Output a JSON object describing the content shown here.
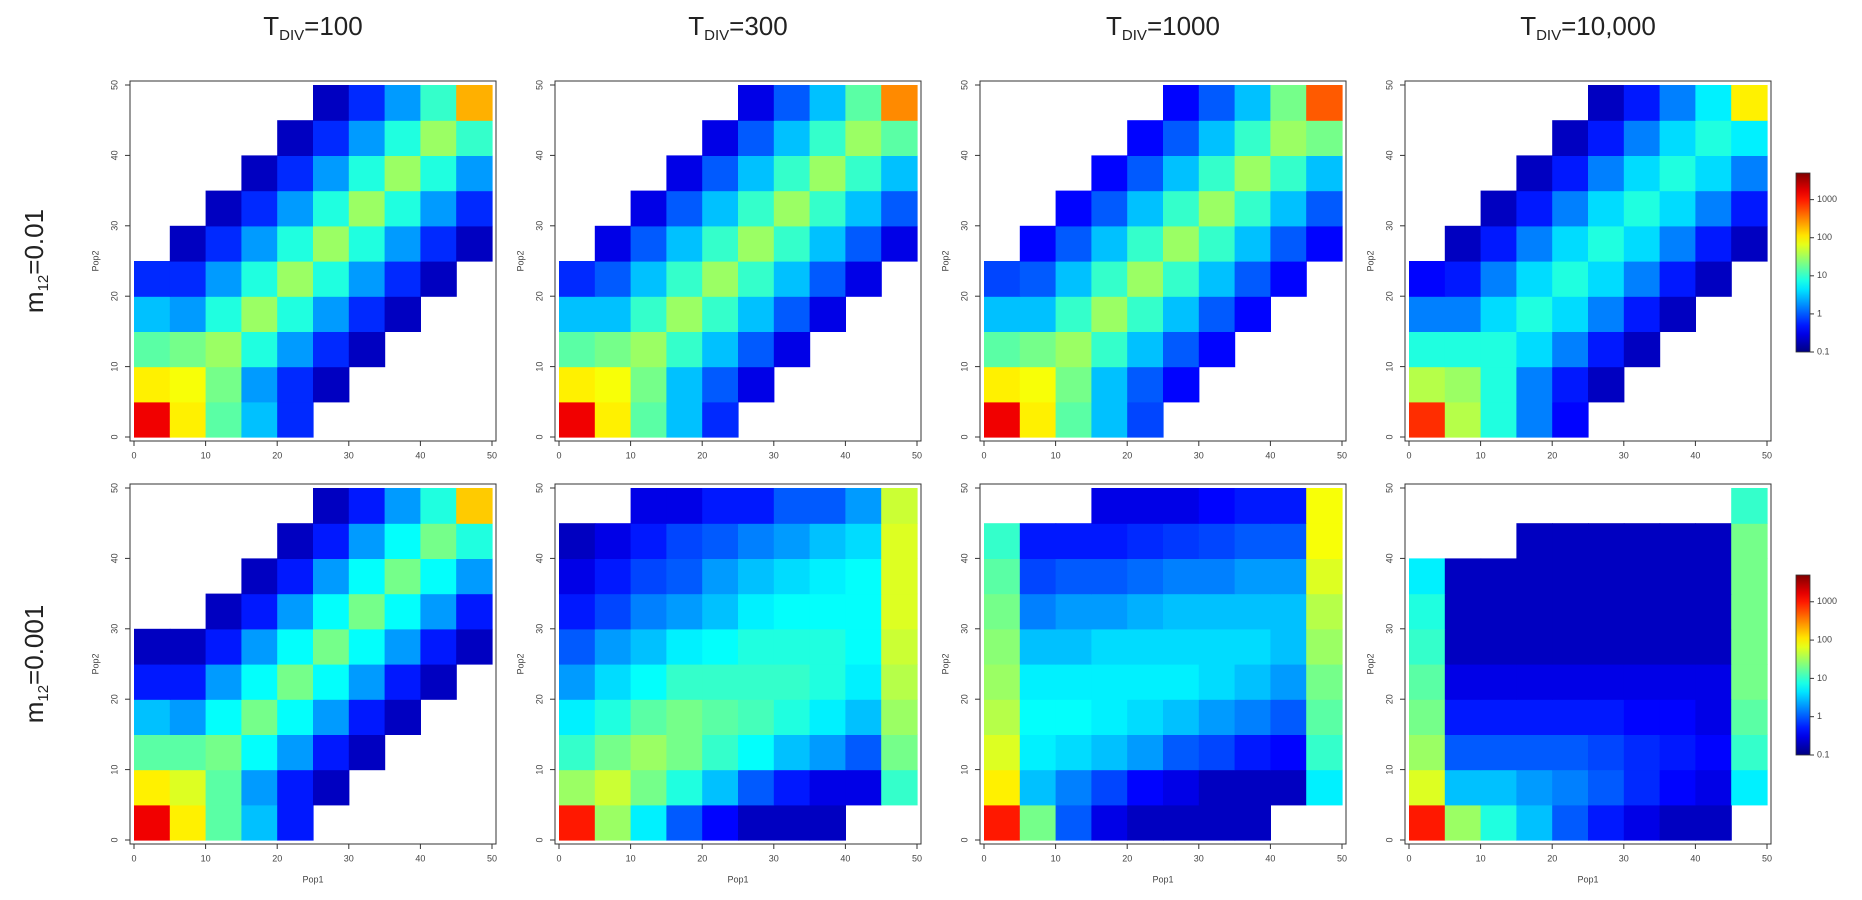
{
  "column_titles": [
    {
      "base": "T",
      "sub": "DIV",
      "text": "=100"
    },
    {
      "base": "T",
      "sub": "DIV",
      "text": "=300"
    },
    {
      "base": "T",
      "sub": "DIV",
      "text": "=1000"
    },
    {
      "base": "T",
      "sub": "DIV",
      "text": "=10,000"
    }
  ],
  "row_labels": [
    {
      "base": "m",
      "sub": "12",
      "text": "=0.01"
    },
    {
      "base": "m",
      "sub": "12",
      "text": "=0.001"
    }
  ],
  "chart_data": [
    {
      "type": "heatmap",
      "xlim": [
        0,
        50
      ],
      "ylim": [
        0,
        50
      ],
      "xticks": [
        0,
        10,
        20,
        30,
        40,
        50
      ],
      "yticks": [
        0,
        10,
        20,
        30,
        40,
        50
      ],
      "ylabel": "Pop2",
      "z": [
        [
          1500,
          100,
          15,
          3,
          0.6,
          null,
          null,
          null,
          null,
          null
        ],
        [
          100,
          80,
          20,
          2,
          0.6,
          0.2,
          null,
          null,
          null,
          null
        ],
        [
          15,
          20,
          30,
          8,
          2,
          0.6,
          0.2,
          null,
          null,
          null
        ],
        [
          3,
          2,
          8,
          30,
          8,
          2,
          0.6,
          0.2,
          null,
          null
        ],
        [
          0.6,
          0.6,
          2,
          8,
          30,
          8,
          2,
          0.6,
          0.2,
          null
        ],
        [
          null,
          0.2,
          0.6,
          2,
          8,
          30,
          8,
          2,
          0.6,
          0.2
        ],
        [
          null,
          null,
          0.2,
          0.6,
          2,
          8,
          30,
          8,
          2,
          0.6
        ],
        [
          null,
          null,
          null,
          0.2,
          0.6,
          2,
          8,
          30,
          8,
          2
        ],
        [
          null,
          null,
          null,
          null,
          0.2,
          0.6,
          2,
          8,
          30,
          10
        ],
        [
          null,
          null,
          null,
          null,
          null,
          0.2,
          0.6,
          2,
          10,
          200
        ]
      ]
    },
    {
      "type": "heatmap",
      "xlim": [
        0,
        50
      ],
      "ylim": [
        0,
        50
      ],
      "xticks": [
        0,
        10,
        20,
        30,
        40,
        50
      ],
      "yticks": [
        0,
        10,
        20,
        30,
        40,
        50
      ],
      "ylabel": "Pop2",
      "z": [
        [
          1500,
          100,
          15,
          3,
          0.6,
          null,
          null,
          null,
          null,
          null
        ],
        [
          100,
          80,
          20,
          3,
          1,
          0.3,
          null,
          null,
          null,
          null
        ],
        [
          15,
          20,
          30,
          10,
          3,
          1,
          0.3,
          null,
          null,
          null
        ],
        [
          3,
          3,
          10,
          30,
          10,
          3,
          1,
          0.3,
          null,
          null
        ],
        [
          0.6,
          1,
          3,
          10,
          30,
          10,
          3,
          1,
          0.3,
          null
        ],
        [
          null,
          0.3,
          1,
          3,
          10,
          30,
          10,
          3,
          1,
          0.3
        ],
        [
          null,
          null,
          0.3,
          1,
          3,
          10,
          30,
          10,
          3,
          1
        ],
        [
          null,
          null,
          null,
          0.3,
          1,
          3,
          10,
          30,
          10,
          3
        ],
        [
          null,
          null,
          null,
          null,
          0.3,
          1,
          3,
          10,
          30,
          15
        ],
        [
          null,
          null,
          null,
          null,
          null,
          0.3,
          1,
          3,
          15,
          300
        ]
      ]
    },
    {
      "type": "heatmap",
      "xlim": [
        0,
        50
      ],
      "ylim": [
        0,
        50
      ],
      "xticks": [
        0,
        10,
        20,
        30,
        40,
        50
      ],
      "yticks": [
        0,
        10,
        20,
        30,
        40,
        50
      ],
      "ylabel": "Pop2",
      "z": [
        [
          1500,
          100,
          15,
          3,
          0.8,
          null,
          null,
          null,
          null,
          null
        ],
        [
          100,
          80,
          20,
          3,
          1,
          0.4,
          null,
          null,
          null,
          null
        ],
        [
          15,
          20,
          30,
          10,
          3,
          1,
          0.4,
          null,
          null,
          null
        ],
        [
          3,
          3,
          10,
          30,
          10,
          3,
          1,
          0.4,
          null,
          null
        ],
        [
          0.8,
          1,
          3,
          10,
          30,
          10,
          3,
          1,
          0.4,
          null
        ],
        [
          null,
          0.4,
          1,
          3,
          10,
          30,
          10,
          3,
          1,
          0.4
        ],
        [
          null,
          null,
          0.4,
          1,
          3,
          10,
          30,
          10,
          3,
          1
        ],
        [
          null,
          null,
          null,
          0.4,
          1,
          3,
          10,
          30,
          10,
          3
        ],
        [
          null,
          null,
          null,
          null,
          0.4,
          1,
          3,
          10,
          30,
          20
        ],
        [
          null,
          null,
          null,
          null,
          null,
          0.4,
          1,
          3,
          20,
          500
        ]
      ]
    },
    {
      "type": "heatmap",
      "xlim": [
        0,
        50
      ],
      "ylim": [
        0,
        50
      ],
      "xticks": [
        0,
        10,
        20,
        30,
        40,
        50
      ],
      "yticks": [
        0,
        10,
        20,
        30,
        40,
        50
      ],
      "ylabel": "Pop2",
      "colorbar": {
        "lim": [
          0.1,
          5000
        ],
        "ticks": [
          0.1,
          1,
          10,
          100,
          1000
        ],
        "log": true,
        "colormap": "jet"
      },
      "z": [
        [
          800,
          40,
          8,
          1.5,
          0.4,
          null,
          null,
          null,
          null,
          null
        ],
        [
          40,
          30,
          8,
          1.5,
          0.5,
          0.2,
          null,
          null,
          null,
          null
        ],
        [
          8,
          8,
          8,
          4,
          1.5,
          0.5,
          0.2,
          null,
          null,
          null
        ],
        [
          1.5,
          1.5,
          4,
          8,
          4,
          1.5,
          0.5,
          0.2,
          null,
          null
        ],
        [
          0.4,
          0.5,
          1.5,
          4,
          8,
          4,
          1.5,
          0.5,
          0.2,
          null
        ],
        [
          null,
          0.2,
          0.5,
          1.5,
          4,
          8,
          4,
          1.5,
          0.5,
          0.2
        ],
        [
          null,
          null,
          0.2,
          0.5,
          1.5,
          4,
          8,
          4,
          1.5,
          0.5
        ],
        [
          null,
          null,
          null,
          0.2,
          0.5,
          1.5,
          4,
          8,
          4,
          1.5
        ],
        [
          null,
          null,
          null,
          null,
          0.2,
          0.5,
          1.5,
          4,
          8,
          5
        ],
        [
          null,
          null,
          null,
          null,
          null,
          0.2,
          0.5,
          1.5,
          5,
          100
        ]
      ]
    },
    {
      "type": "heatmap",
      "xlim": [
        0,
        50
      ],
      "ylim": [
        0,
        50
      ],
      "xticks": [
        0,
        10,
        20,
        30,
        40,
        50
      ],
      "yticks": [
        0,
        10,
        20,
        30,
        40,
        50
      ],
      "xlabel": "Pop1",
      "ylabel": "Pop2",
      "z": [
        [
          1500,
          100,
          15,
          3,
          0.5,
          null,
          null,
          null,
          null,
          null
        ],
        [
          100,
          60,
          15,
          2,
          0.5,
          0.2,
          null,
          null,
          null,
          null
        ],
        [
          15,
          15,
          20,
          6,
          2,
          0.5,
          0.2,
          null,
          null,
          null
        ],
        [
          3,
          2,
          6,
          20,
          6,
          2,
          0.5,
          0.2,
          null,
          null
        ],
        [
          0.5,
          0.5,
          2,
          6,
          20,
          6,
          2,
          0.5,
          0.2,
          null
        ],
        [
          0.2,
          0.2,
          0.5,
          2,
          6,
          20,
          6,
          2,
          0.5,
          0.2
        ],
        [
          null,
          null,
          0.2,
          0.5,
          2,
          6,
          20,
          6,
          2,
          0.5
        ],
        [
          null,
          null,
          null,
          0.2,
          0.5,
          2,
          6,
          20,
          6,
          2
        ],
        [
          null,
          null,
          null,
          null,
          0.2,
          0.5,
          2,
          6,
          20,
          8
        ],
        [
          null,
          null,
          null,
          null,
          null,
          0.2,
          0.5,
          2,
          8,
          150
        ]
      ]
    },
    {
      "type": "heatmap",
      "xlim": [
        0,
        50
      ],
      "ylim": [
        0,
        50
      ],
      "xticks": [
        0,
        10,
        20,
        30,
        40,
        50
      ],
      "yticks": [
        0,
        10,
        20,
        30,
        40,
        50
      ],
      "xlabel": "Pop1",
      "ylabel": "Pop2",
      "z": [
        [
          1000,
          30,
          5,
          1,
          0.4,
          0.2,
          0.2,
          0.2,
          null,
          null
        ],
        [
          30,
          50,
          20,
          8,
          3,
          1,
          0.5,
          0.3,
          0.3,
          10
        ],
        [
          10,
          20,
          30,
          20,
          10,
          6,
          3,
          2,
          1,
          20
        ],
        [
          5,
          8,
          15,
          20,
          15,
          12,
          8,
          5,
          3,
          30
        ],
        [
          2,
          4,
          6,
          10,
          10,
          10,
          10,
          8,
          5,
          40
        ],
        [
          1,
          2,
          3,
          5,
          6,
          8,
          8,
          8,
          6,
          50
        ],
        [
          0.5,
          0.8,
          1.5,
          2,
          3,
          5,
          6,
          6,
          6,
          60
        ],
        [
          0.3,
          0.5,
          0.8,
          1,
          2,
          3,
          4,
          5,
          6,
          60
        ],
        [
          0.2,
          0.3,
          0.5,
          0.8,
          1,
          1.5,
          2,
          3,
          4,
          60
        ],
        [
          null,
          null,
          0.3,
          0.3,
          0.5,
          0.5,
          1,
          1,
          2,
          50
        ]
      ]
    },
    {
      "type": "heatmap",
      "xlim": [
        0,
        50
      ],
      "ylim": [
        0,
        50
      ],
      "xticks": [
        0,
        10,
        20,
        30,
        40,
        50
      ],
      "yticks": [
        0,
        10,
        20,
        30,
        40,
        50
      ],
      "xlabel": "Pop1",
      "ylabel": "Pop2",
      "z": [
        [
          1000,
          20,
          1,
          0.3,
          0.2,
          0.2,
          0.2,
          0.2,
          null,
          null
        ],
        [
          100,
          3,
          1.5,
          0.8,
          0.4,
          0.3,
          0.2,
          0.2,
          0.2,
          5
        ],
        [
          60,
          5,
          4,
          3,
          2,
          1,
          0.8,
          0.5,
          0.4,
          10
        ],
        [
          40,
          6,
          6,
          5,
          4,
          3,
          2,
          1.5,
          1,
          15
        ],
        [
          30,
          5,
          5,
          5,
          5,
          5,
          4,
          3,
          2,
          20
        ],
        [
          25,
          3,
          3,
          4,
          4,
          4,
          4,
          4,
          3,
          30
        ],
        [
          20,
          1.5,
          2,
          2,
          2.5,
          3,
          3,
          3,
          3,
          40
        ],
        [
          15,
          0.8,
          1,
          1,
          1.2,
          1.5,
          1.5,
          2,
          2,
          60
        ],
        [
          10,
          0.5,
          0.5,
          0.5,
          0.6,
          0.7,
          0.8,
          1,
          1,
          80
        ],
        [
          null,
          null,
          null,
          0.3,
          0.3,
          0.3,
          0.4,
          0.5,
          0.5,
          80
        ]
      ]
    },
    {
      "type": "heatmap",
      "xlim": [
        0,
        50
      ],
      "ylim": [
        0,
        50
      ],
      "xticks": [
        0,
        10,
        20,
        30,
        40,
        50
      ],
      "yticks": [
        0,
        10,
        20,
        30,
        40,
        50
      ],
      "xlabel": "Pop1",
      "ylabel": "Pop2",
      "colorbar": {
        "lim": [
          0.1,
          5000
        ],
        "ticks": [
          0.1,
          1,
          10,
          100,
          1000
        ],
        "log": true,
        "colormap": "jet"
      },
      "z": [
        [
          1000,
          30,
          8,
          3,
          1,
          0.5,
          0.3,
          0.2,
          0.2,
          null
        ],
        [
          60,
          3,
          3,
          2,
          1.5,
          1,
          0.6,
          0.4,
          0.3,
          5
        ],
        [
          30,
          1,
          1,
          1,
          1,
          0.8,
          0.6,
          0.5,
          0.4,
          10
        ],
        [
          20,
          0.5,
          0.5,
          0.5,
          0.5,
          0.5,
          0.4,
          0.4,
          0.3,
          15
        ],
        [
          15,
          0.3,
          0.3,
          0.3,
          0.3,
          0.3,
          0.3,
          0.3,
          0.3,
          20
        ],
        [
          10,
          0.2,
          0.2,
          0.2,
          0.2,
          0.2,
          0.2,
          0.2,
          0.2,
          20
        ],
        [
          8,
          0.2,
          0.2,
          0.2,
          0.2,
          0.2,
          0.2,
          0.2,
          0.2,
          20
        ],
        [
          5,
          0.2,
          0.2,
          0.2,
          0.2,
          0.2,
          0.2,
          0.2,
          0.2,
          20
        ],
        [
          null,
          null,
          null,
          0.2,
          0.2,
          0.2,
          0.2,
          0.2,
          0.2,
          20
        ],
        [
          null,
          null,
          null,
          null,
          null,
          null,
          null,
          null,
          null,
          10
        ]
      ]
    }
  ]
}
